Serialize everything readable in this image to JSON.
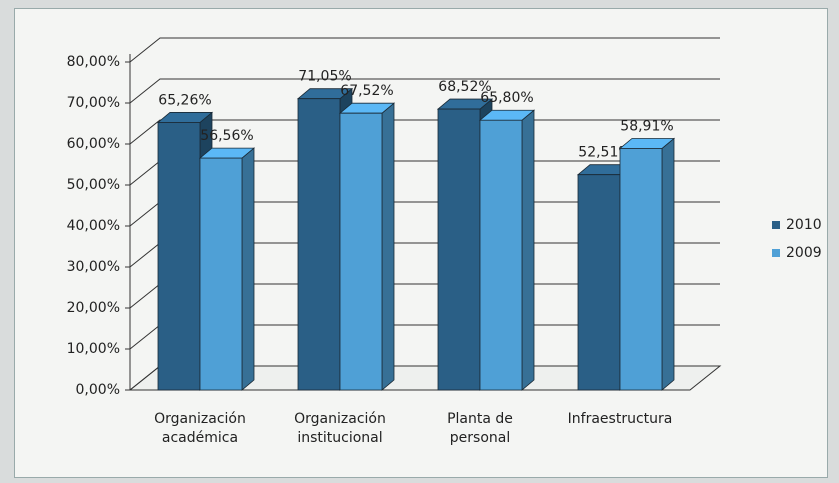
{
  "chart_data": {
    "type": "bar3d",
    "categories": [
      "Organización académica",
      "Organización institucional",
      "Planta de personal",
      "Infraestructura"
    ],
    "series": [
      {
        "name": "2010",
        "color": "#2a5f86",
        "values": [
          65.26,
          71.05,
          68.52,
          52.51
        ],
        "value_labels": [
          "65,26%",
          "71,05%",
          "68,52%",
          "52,51%"
        ]
      },
      {
        "name": "2009",
        "color": "#4fa0d6",
        "values": [
          56.56,
          67.52,
          65.8,
          58.91
        ],
        "value_labels": [
          "56,56%",
          "67,52%",
          "65,80%",
          "58,91%"
        ]
      }
    ],
    "ylim": [
      0,
      80
    ],
    "yticks": [
      {
        "value": 0,
        "label": "0,00%"
      },
      {
        "value": 10,
        "label": "10,00%"
      },
      {
        "value": 20,
        "label": "20,00%"
      },
      {
        "value": 30,
        "label": "30,00%"
      },
      {
        "value": 40,
        "label": "40,00%"
      },
      {
        "value": 50,
        "label": "50,00%"
      },
      {
        "value": 60,
        "label": "60,00%"
      },
      {
        "value": 70,
        "label": "70,00%"
      },
      {
        "value": 80,
        "label": "80,00%"
      }
    ],
    "grid": true,
    "legend": "right"
  }
}
